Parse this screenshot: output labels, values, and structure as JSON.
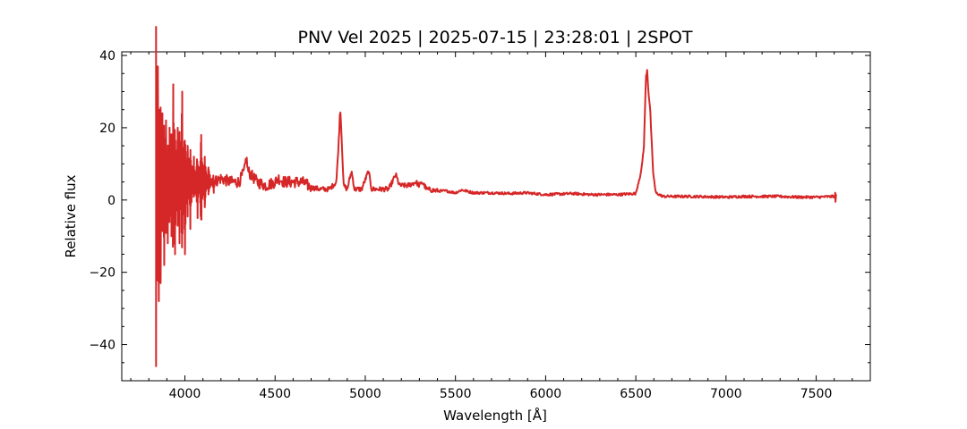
{
  "chart_data": {
    "type": "line",
    "title": "PNV Vel 2025 | 2025-07-15 | 23:28:01 | 2SPOT",
    "xlabel": "Wavelength [Å]",
    "ylabel": "Relative flux",
    "xlim": [
      3650,
      7800
    ],
    "ylim": [
      -50,
      41
    ],
    "xticks": [
      4000,
      4500,
      5000,
      5500,
      6000,
      6500,
      7000,
      7500
    ],
    "xtick_labels": [
      "4000",
      "4500",
      "5000",
      "5500",
      "6000",
      "6500",
      "7000",
      "7500"
    ],
    "yticks": [
      -40,
      -20,
      0,
      20,
      40
    ],
    "ytick_labels": [
      "−40",
      "−20",
      "0",
      "20",
      "40"
    ],
    "grid": false,
    "line_color": "#d62728",
    "series": [
      {
        "x_range": [
          3840,
          7610
        ],
        "noisy_region": {
          "start": 3840,
          "end": 4160,
          "samples": [
            [
              3840,
              -46
            ],
            [
              3845,
              30
            ],
            [
              3850,
              37
            ],
            [
              3855,
              -28
            ],
            [
              3860,
              25
            ],
            [
              3865,
              -23
            ],
            [
              3875,
              24
            ],
            [
              3885,
              -18
            ],
            [
              3895,
              22
            ],
            [
              3905,
              -12
            ],
            [
              3915,
              20
            ],
            [
              3925,
              -10
            ],
            [
              3935,
              32
            ],
            [
              3945,
              -15
            ],
            [
              3960,
              20
            ],
            [
              3970,
              -12
            ],
            [
              3985,
              30
            ],
            [
              4000,
              -15
            ],
            [
              4015,
              15
            ],
            [
              4030,
              -8
            ],
            [
              4050,
              12
            ],
            [
              4070,
              -5
            ],
            [
              4090,
              18
            ],
            [
              4110,
              -2
            ],
            [
              4130,
              9
            ],
            [
              4160,
              2
            ]
          ]
        },
        "profile": [
          [
            4160,
            5
          ],
          [
            4200,
            6
          ],
          [
            4250,
            5
          ],
          [
            4300,
            5
          ],
          [
            4330,
            8
          ],
          [
            4340,
            12
          ],
          [
            4350,
            8
          ],
          [
            4400,
            5
          ],
          [
            4450,
            4
          ],
          [
            4500,
            5
          ],
          [
            4520,
            6
          ],
          [
            4550,
            5
          ],
          [
            4600,
            5
          ],
          [
            4650,
            5
          ],
          [
            4700,
            3.5
          ],
          [
            4750,
            3
          ],
          [
            4800,
            3
          ],
          [
            4840,
            5
          ],
          [
            4855,
            18
          ],
          [
            4861,
            26
          ],
          [
            4870,
            16
          ],
          [
            4880,
            4
          ],
          [
            4900,
            3
          ],
          [
            4924,
            8
          ],
          [
            4940,
            3
          ],
          [
            4980,
            3
          ],
          [
            5018,
            8
          ],
          [
            5035,
            3
          ],
          [
            5100,
            3
          ],
          [
            5130,
            3
          ],
          [
            5169,
            7
          ],
          [
            5190,
            4
          ],
          [
            5235,
            4
          ],
          [
            5260,
            4.5
          ],
          [
            5280,
            5
          ],
          [
            5300,
            4
          ],
          [
            5316,
            5
          ],
          [
            5340,
            3
          ],
          [
            5400,
            2.5
          ],
          [
            5450,
            2.5
          ],
          [
            5500,
            2
          ],
          [
            5535,
            2.8
          ],
          [
            5600,
            2
          ],
          [
            5700,
            2
          ],
          [
            5800,
            1.8
          ],
          [
            5890,
            2
          ],
          [
            6000,
            1.5
          ],
          [
            6150,
            1.8
          ],
          [
            6250,
            1.5
          ],
          [
            6400,
            1.5
          ],
          [
            6500,
            1.8
          ],
          [
            6530,
            8
          ],
          [
            6545,
            15
          ],
          [
            6556,
            34
          ],
          [
            6563,
            36
          ],
          [
            6570,
            30
          ],
          [
            6580,
            25
          ],
          [
            6595,
            8
          ],
          [
            6610,
            2
          ],
          [
            6650,
            1
          ],
          [
            6800,
            1
          ],
          [
            7000,
            0.8
          ],
          [
            7100,
            1
          ],
          [
            7200,
            1
          ],
          [
            7300,
            1
          ],
          [
            7400,
            0.8
          ],
          [
            7500,
            0.8
          ],
          [
            7600,
            1
          ]
        ]
      }
    ]
  }
}
